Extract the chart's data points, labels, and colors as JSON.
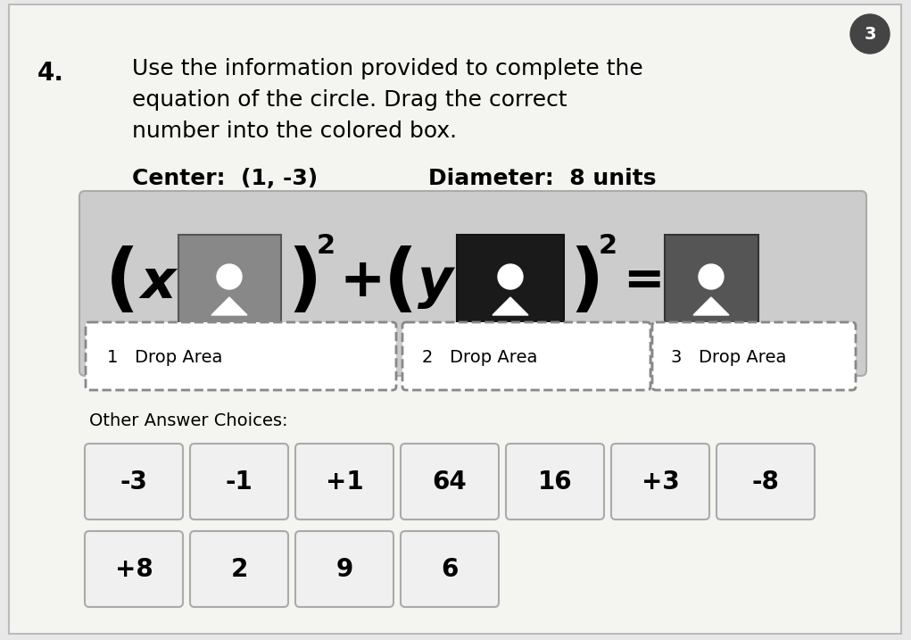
{
  "title_number": "4.",
  "question_line1": "Use the information provided to complete the",
  "question_line2": "equation of the circle. Drag the correct",
  "question_line3": "number into the colored box.",
  "center_label": "Center:  (1, -3)",
  "diameter_label": "Diameter:  8 units",
  "circle_badge": "3",
  "drop_label1": "1   Drop Area",
  "drop_label2": "2   Drop Area",
  "drop_label3": "3   Drop Area",
  "other_choices_label": "Other Answer Choices:",
  "row1_choices": [
    "-3",
    "-1",
    "+1",
    "64",
    "16",
    "+3",
    "-8"
  ],
  "row2_choices": [
    "+8",
    "2",
    "9",
    "6"
  ],
  "paper_color": "#e8e8e8",
  "eq_bg_color": "#d0d0d0",
  "drop_area_bg": "#ffffff",
  "box1_color": "#888888",
  "box2_color": "#1a1a1a",
  "box3_color": "#555555",
  "choice_bg": "#f0f0f0",
  "choice_edge": "#aaaaaa"
}
